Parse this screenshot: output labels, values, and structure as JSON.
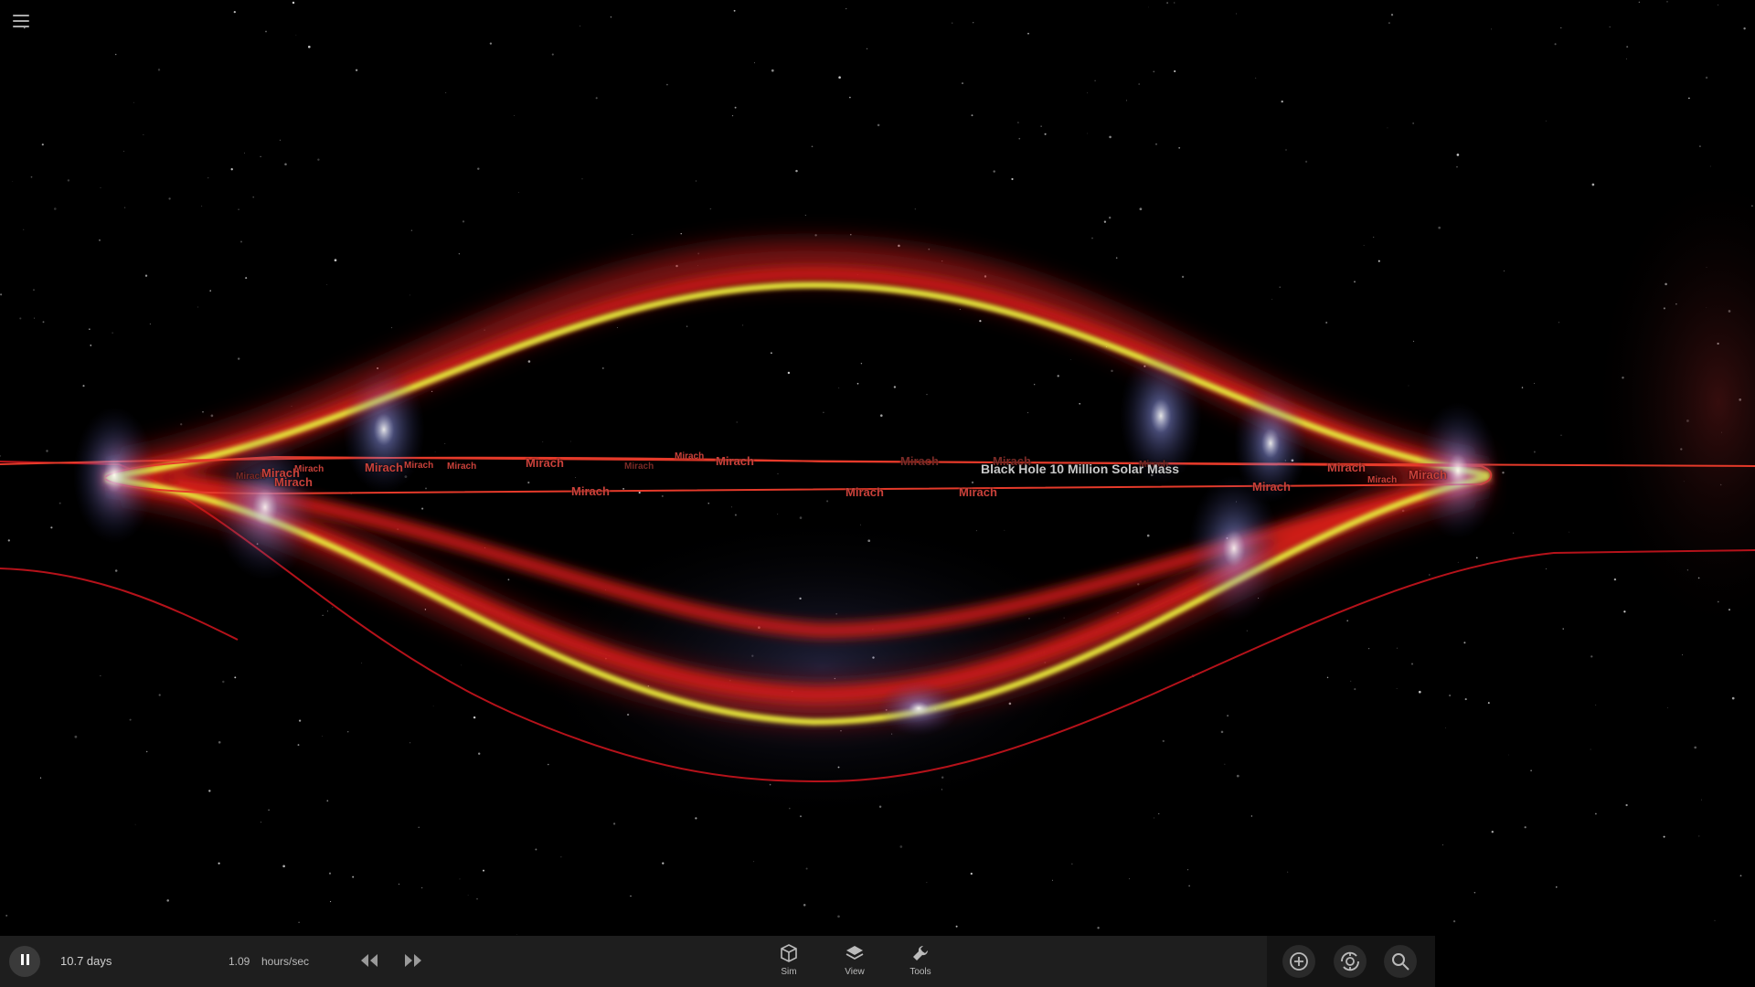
{
  "scene": {
    "object_name": "Black Hole 10 Million Solar Mass",
    "body_labels": [
      {
        "text": "Mirach",
        "size": "small",
        "faint": true
      },
      {
        "text": "Mirach",
        "size": "small",
        "faint": false
      },
      {
        "text": "Mirach",
        "size": "normal",
        "faint": false
      },
      {
        "text": "Mirach",
        "size": "normal",
        "faint": false
      },
      {
        "text": "Mirach",
        "size": "normal",
        "faint": false
      },
      {
        "text": "Mirach",
        "size": "small",
        "faint": false
      },
      {
        "text": "Mirach",
        "size": "small",
        "faint": false
      },
      {
        "text": "Mirach",
        "size": "normal",
        "faint": false
      },
      {
        "text": "Mirach",
        "size": "normal",
        "faint": false
      },
      {
        "text": "Mirach",
        "size": "small",
        "faint": true
      },
      {
        "text": "Mirach",
        "size": "small",
        "faint": false
      },
      {
        "text": "Mirach",
        "size": "normal",
        "faint": false
      },
      {
        "text": "Mirach",
        "size": "normal",
        "faint": true
      },
      {
        "text": "Mirach",
        "size": "normal",
        "faint": false
      },
      {
        "text": "Mirach",
        "size": "normal",
        "faint": true
      },
      {
        "text": "Mirach",
        "size": "normal",
        "faint": false
      },
      {
        "text": "Mirach",
        "size": "small",
        "faint": true
      },
      {
        "text": "Mirach",
        "size": "normal",
        "faint": false
      },
      {
        "text": "Mirach",
        "size": "normal",
        "faint": false
      },
      {
        "text": "Mirach",
        "size": "small",
        "faint": false
      },
      {
        "text": "Mirach",
        "size": "normal",
        "faint": false
      }
    ],
    "colors": {
      "orbit_red": "#c0121a",
      "ring_yellow": "#e6e63a",
      "glow_blue": "#8890ff",
      "background": "#000000"
    }
  },
  "menu": {
    "icon": "hamburger-menu-icon"
  },
  "bottom_bar": {
    "play_state_icon": "pause-icon",
    "elapsed_time": "10.7 days",
    "time_rate_value": "1.09",
    "time_rate_unit": "hours/sec",
    "rewind_icon": "rewind-icon",
    "fast_forward_icon": "fast-forward-icon",
    "tabs": [
      {
        "label": "Sim",
        "icon": "cube-icon"
      },
      {
        "label": "View",
        "icon": "layers-icon"
      },
      {
        "label": "Tools",
        "icon": "wrench-icon"
      }
    ],
    "right_buttons": [
      {
        "icon": "add-object-icon"
      },
      {
        "icon": "orbit-camera-icon"
      },
      {
        "icon": "search-icon"
      }
    ]
  }
}
